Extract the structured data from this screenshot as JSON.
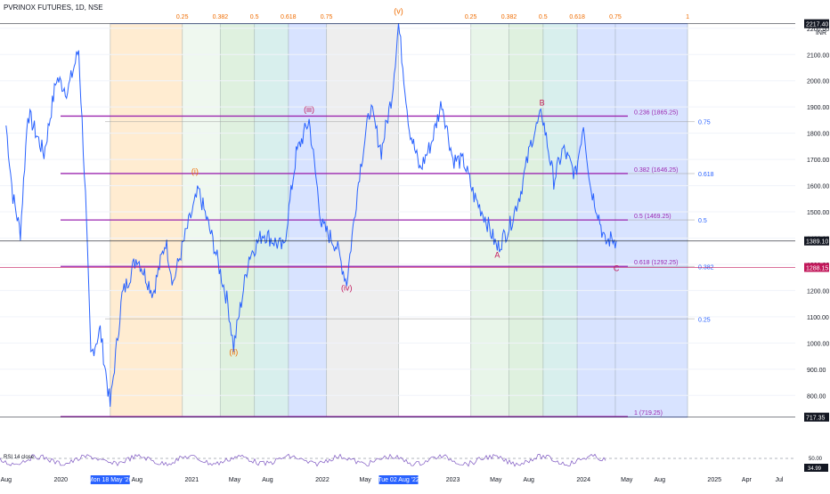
{
  "header": {
    "title": "PVRINOX FUTURES, 1D, NSE"
  },
  "unit_label": "INR",
  "colors": {
    "price": "#2962ff",
    "fib_line": "#9c27b0",
    "last_price": "#c2185b",
    "time_zone": [
      "#ff9800",
      "#81c784",
      "#4caf50",
      "#26a69a",
      "#2962ff",
      "#9e9e9e"
    ]
  },
  "chart_data": {
    "type": "line",
    "series": [
      {
        "values": [
          {
            "x": "2019-08-01",
            "y": 1830
          },
          {
            "x": "2019-08-20",
            "y": 1560
          },
          {
            "x": "2019-09-10",
            "y": 1420
          },
          {
            "x": "2019-10-01",
            "y": 1880
          },
          {
            "x": "2019-11-15",
            "y": 1720
          },
          {
            "x": "2019-12-20",
            "y": 2010
          },
          {
            "x": "2020-01-20",
            "y": 1960
          },
          {
            "x": "2020-02-20",
            "y": 2120
          },
          {
            "x": "2020-03-10",
            "y": 1560
          },
          {
            "x": "2020-03-25",
            "y": 950
          },
          {
            "x": "2020-04-20",
            "y": 1050
          },
          {
            "x": "2020-05-18",
            "y": 760
          },
          {
            "x": "2020-06-20",
            "y": 1180
          },
          {
            "x": "2020-08-01",
            "y": 1330
          },
          {
            "x": "2020-09-15",
            "y": 1190
          },
          {
            "x": "2020-10-20",
            "y": 1390
          },
          {
            "x": "2020-11-10",
            "y": 1230
          },
          {
            "x": "2020-12-20",
            "y": 1440
          },
          {
            "x": "2021-01-20",
            "y": 1580
          },
          {
            "x": "2021-03-01",
            "y": 1390
          },
          {
            "x": "2021-04-12",
            "y": 1150
          },
          {
            "x": "2021-04-28",
            "y": 985
          },
          {
            "x": "2021-06-10",
            "y": 1330
          },
          {
            "x": "2021-07-20",
            "y": 1420
          },
          {
            "x": "2021-09-15",
            "y": 1360
          },
          {
            "x": "2021-10-20",
            "y": 1720
          },
          {
            "x": "2021-11-25",
            "y": 1850
          },
          {
            "x": "2021-12-30",
            "y": 1450
          },
          {
            "x": "2022-02-10",
            "y": 1370
          },
          {
            "x": "2022-03-10",
            "y": 1230
          },
          {
            "x": "2022-04-15",
            "y": 1650
          },
          {
            "x": "2022-05-15",
            "y": 1900
          },
          {
            "x": "2022-06-15",
            "y": 1730
          },
          {
            "x": "2022-07-15",
            "y": 1950
          },
          {
            "x": "2022-08-02",
            "y": 2217
          },
          {
            "x": "2022-09-01",
            "y": 1820
          },
          {
            "x": "2022-10-01",
            "y": 1660
          },
          {
            "x": "2022-11-01",
            "y": 1760
          },
          {
            "x": "2022-12-01",
            "y": 1920
          },
          {
            "x": "2023-01-01",
            "y": 1700
          },
          {
            "x": "2023-02-01",
            "y": 1690
          },
          {
            "x": "2023-03-01",
            "y": 1560
          },
          {
            "x": "2023-04-01",
            "y": 1480
          },
          {
            "x": "2023-05-05",
            "y": 1360
          },
          {
            "x": "2023-06-10",
            "y": 1450
          },
          {
            "x": "2023-07-10",
            "y": 1580
          },
          {
            "x": "2023-08-10",
            "y": 1780
          },
          {
            "x": "2023-09-07",
            "y": 1875
          },
          {
            "x": "2023-10-10",
            "y": 1620
          },
          {
            "x": "2023-11-05",
            "y": 1740
          },
          {
            "x": "2023-12-10",
            "y": 1640
          },
          {
            "x": "2024-01-01",
            "y": 1840
          },
          {
            "x": "2024-01-20",
            "y": 1600
          },
          {
            "x": "2024-02-10",
            "y": 1500
          },
          {
            "x": "2024-03-01",
            "y": 1380
          },
          {
            "x": "2024-03-20",
            "y": 1400
          },
          {
            "x": "2024-04-02",
            "y": 1389
          }
        ]
      }
    ],
    "x_tick_labels": [
      "Aug",
      "2020",
      "Mon 18 May '20",
      "Aug",
      "2021",
      "May",
      "Aug",
      "2022",
      "May",
      "Tue 02 Aug '22",
      "2023",
      "May",
      "Aug",
      "2024",
      "May",
      "Aug",
      "2025",
      "Apr",
      "Jul"
    ],
    "y_ticks": [
      800,
      900,
      1000,
      1100,
      1200,
      1300,
      1400,
      1500,
      1600,
      1700,
      1800,
      1900,
      2000,
      2100,
      2200
    ],
    "y_tick_labels": [
      "800.00",
      "900.00",
      "1000.00",
      "1100.00",
      "1200.00",
      "1300.00",
      "1400.00",
      "1500.00",
      "1600.00",
      "1700.00",
      "1800.00",
      "1900.00",
      "2000.00",
      "2100.00",
      "2200.00"
    ],
    "ylim": [
      560,
      2240
    ],
    "xlim": [
      "2019-07-15",
      "2025-08-15"
    ],
    "price_badges": [
      {
        "value": 2217.4,
        "label": "2217.40"
      },
      {
        "value": 1389.1,
        "label": "1389.10"
      },
      {
        "value": 1288.15,
        "label": "1288.15"
      },
      {
        "value": 717.35,
        "label": "717.35"
      }
    ],
    "fib_retracements": [
      {
        "value": 1865.25,
        "label": "0.236 (1865.25)"
      },
      {
        "value": 1646.25,
        "label": "0.382 (1646.25)"
      },
      {
        "value": 1469.25,
        "label": "0.5 (1469.25)"
      },
      {
        "value": 1292.25,
        "label": "0.618 (1292.25)"
      },
      {
        "value": 719.25,
        "label": "1 (719.25)"
      }
    ],
    "fib_time_zones": [
      {
        "start": "2020-05-18",
        "end": "2022-08-02",
        "top": 2217.4,
        "bottom": 717.35,
        "levels": [
          {
            "t": 0,
            "label": ""
          },
          {
            "t": 0.25,
            "label": "0.25"
          },
          {
            "t": 0.382,
            "label": "0.382"
          },
          {
            "t": 0.5,
            "label": "0.5"
          },
          {
            "t": 0.618,
            "label": "0.618"
          },
          {
            "t": 0.75,
            "label": "0.75"
          },
          {
            "t": 1,
            "label": ""
          }
        ]
      },
      {
        "start": "2022-08-02",
        "end": "2024-10-18",
        "top": 2217.4,
        "bottom": 717.35,
        "levels": [
          {
            "t": 0.25,
            "label": "0.25"
          },
          {
            "t": 0.382,
            "label": "0.382"
          },
          {
            "t": 0.5,
            "label": "0.5"
          },
          {
            "t": 0.618,
            "label": "0.618"
          },
          {
            "t": 0.75,
            "label": "0.75"
          },
          {
            "t": 1,
            "label": "1"
          }
        ]
      }
    ],
    "horizontal_fib_labels": [
      {
        "value": 1844,
        "label": "0.75"
      },
      {
        "value": 1646,
        "label": "0.618"
      },
      {
        "value": 1469,
        "label": "0.5"
      },
      {
        "value": 1292,
        "label": "0.382"
      },
      {
        "value": 1092,
        "label": "0.25"
      }
    ],
    "wave_labels": [
      {
        "x": "2021-01-10",
        "y": 1645,
        "text": "(i)"
      },
      {
        "x": "2021-04-28",
        "y": 955,
        "text": "(ii)"
      },
      {
        "x": "2021-11-25",
        "y": 1880,
        "text": "(iii)"
      },
      {
        "x": "2022-03-10",
        "y": 1200,
        "text": "(iv)"
      },
      {
        "x": "2022-08-02",
        "y": 2255,
        "text": "(v)"
      },
      {
        "x": "2023-05-05",
        "y": 1325,
        "text": "A"
      },
      {
        "x": "2023-09-07",
        "y": 1905,
        "text": "B"
      },
      {
        "x": "2024-04-02",
        "y": 1275,
        "text": "C"
      }
    ],
    "rsi": {
      "label": "RSI 14 close",
      "values": [
        "50.00",
        "34.99"
      ]
    }
  }
}
